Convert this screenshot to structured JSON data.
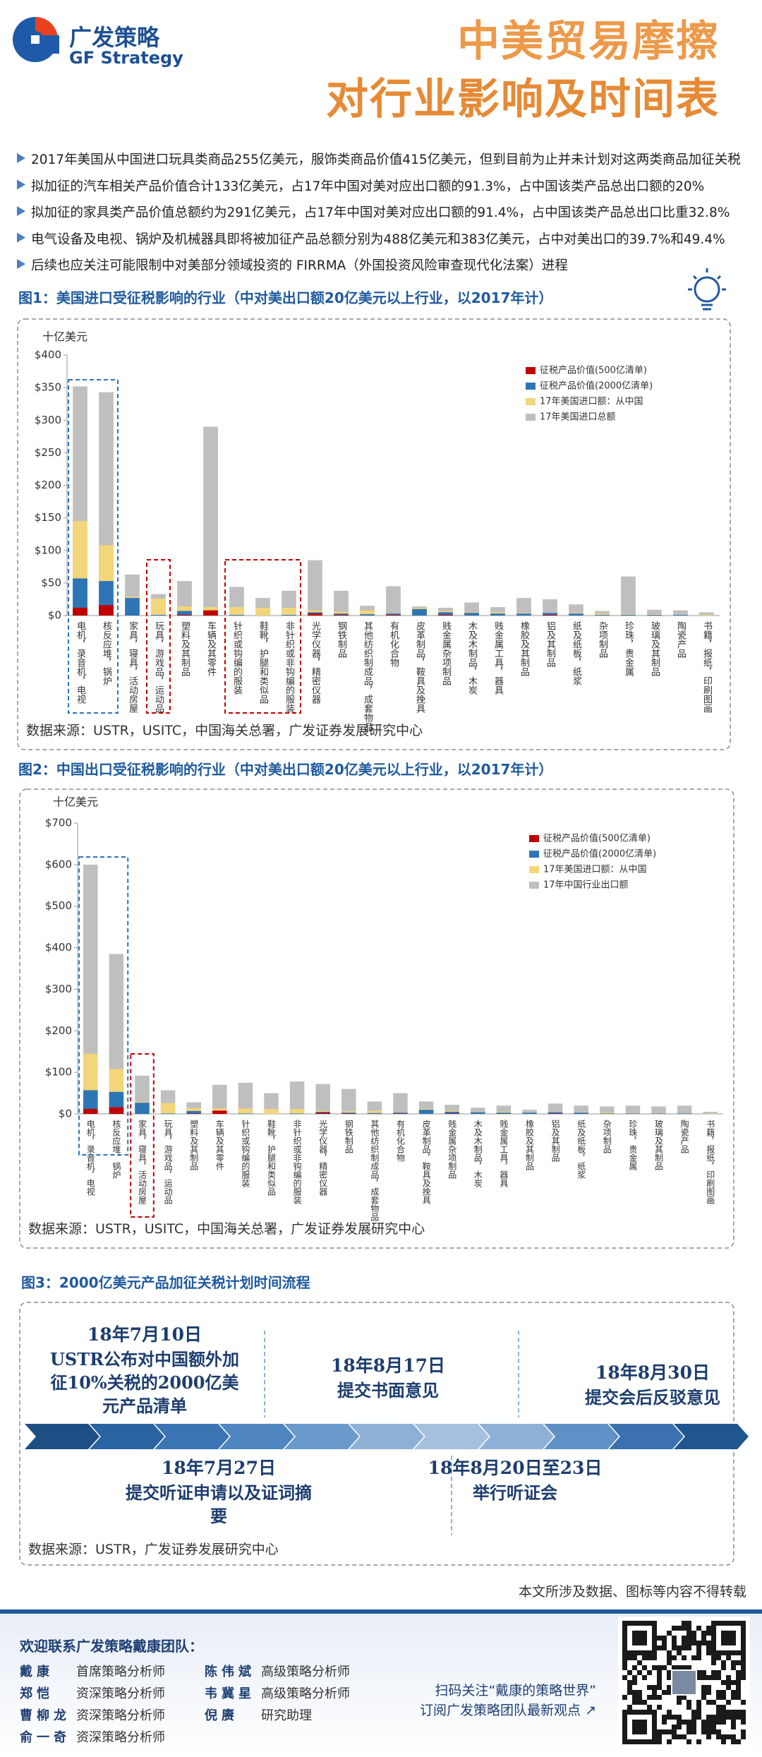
{
  "header": {
    "brand": "广发策略",
    "brand_en": "GF Strategy",
    "title_line1": "中美贸易摩擦",
    "title_line2": "对行业影响及时间表"
  },
  "bullets": [
    "2017年美国从中国进口玩具类商品255亿美元，服饰类商品价值415亿美元，但到目前为止并未计划对这两类商品加征关税",
    "拟加征的汽车相关产品价值合计133亿美元，占17年中国对美对应出口额的91.3%，占中国该类产品总出口额的20%",
    "拟加征的家具类产品价值总额约为291亿美元，占17年中国对美对应出口额的91.4%，占中国该类产品总出口比重32.8%",
    "电气设备及电视、锅炉及机械器具即将被加征产品总额分别为488亿美元和383亿美元，占中对美出口的39.7%和49.4%",
    "后续也应关注可能限制中对美部分领域投资的 FIRRMA（外国投资风险审查现代化法案）进程"
  ],
  "chart_data": [
    {
      "type": "bar",
      "title": "图1：美国进口受征税影响的行业（中对美出口额20亿美元以上行业，以2017年计）",
      "y_label": "十亿美元",
      "source": "数据来源：USTR，USITC，中国海关总署，广发证券发展研究中心",
      "bar_mode": "overlap",
      "legend": "upper right",
      "grid": false,
      "categories": [
        "电机，录音机，电视",
        "核反应堆，锅炉",
        "家具，寝具，活动房屋",
        "玩具，游戏品，运动品",
        "塑料及其制品",
        "车辆及其零件",
        "针织或钩编的服装",
        "鞋靴，护腿和类似品",
        "非针织或非钩编的服装",
        "光学仪器，精密仪器",
        "钢铁制品",
        "其他纺织制成品，成套物品",
        "有机化合物",
        "皮革制品，鞍具及挽具",
        "贱金属杂项制品",
        "木及木制品，木炭",
        "贱金属工具，器具",
        "橡胶及其制品",
        "铝及其制品",
        "纸及纸板，纸浆",
        "杂项制品",
        "珍珠，贵金属",
        "玻璃及其制品",
        "陶瓷产品",
        "书籍，报纸，印刷图画"
      ],
      "series": [
        {
          "name": "征税产品价值(500亿清单)",
          "color": "#c00000",
          "values": [
            12,
            16,
            0,
            0,
            1,
            8,
            0,
            0,
            0,
            3,
            1,
            0,
            1,
            0,
            1,
            0,
            0,
            0,
            1,
            0,
            0,
            0,
            0,
            0,
            0
          ]
        },
        {
          "name": "征税产品价值(2000亿清单)",
          "color": "#2e75b6",
          "values": [
            57,
            53,
            27,
            1,
            7,
            5,
            1,
            0,
            1,
            5,
            3,
            2,
            3,
            10,
            5,
            4,
            3,
            3,
            4,
            3,
            1,
            1,
            1,
            1,
            0
          ]
        },
        {
          "name": "17年美国进口额：从中国",
          "color": "#f3d57a",
          "values": [
            145,
            108,
            29,
            26,
            14,
            13,
            13,
            12,
            12,
            8,
            6,
            8,
            3,
            12,
            7,
            5,
            5,
            4,
            4,
            4,
            3,
            2,
            2,
            1,
            1
          ]
        },
        {
          "name": "17年美国进口总额",
          "color": "#bfbfbf",
          "values": [
            352,
            343,
            63,
            33,
            53,
            290,
            44,
            27,
            38,
            85,
            38,
            15,
            45,
            14,
            12,
            20,
            13,
            27,
            25,
            17,
            7,
            60,
            9,
            8,
            5
          ]
        }
      ],
      "ylim": [
        0,
        400
      ],
      "yticks": [
        {
          "value": 0,
          "label": "$0"
        },
        {
          "value": 50,
          "label": "$50"
        },
        {
          "value": 100,
          "label": "$100"
        },
        {
          "value": 150,
          "label": "$150"
        },
        {
          "value": 200,
          "label": "$200"
        },
        {
          "value": 250,
          "label": "$250"
        },
        {
          "value": 300,
          "label": "$300"
        },
        {
          "value": 350,
          "label": "$350"
        },
        {
          "value": 400,
          "label": "$400"
        }
      ]
    },
    {
      "type": "bar",
      "title": "图2：中国出口受征税影响的行业（中对美出口额20亿美元以上行业，以2017年计）",
      "y_label": "十亿美元",
      "source": "数据来源：USTR，USITC，中国海关总署，广发证券发展研究中心",
      "bar_mode": "overlap",
      "legend": "upper right",
      "grid": false,
      "categories": [
        "电机，录音机，电视",
        "核反应堆，锅炉",
        "家具，寝具，活动房屋",
        "玩具，游戏品，运动品",
        "塑料及其制品",
        "车辆及其零件",
        "针织或钩编的服装",
        "鞋靴，护腿和类似品",
        "非针织或非钩编的服装",
        "光学仪器，精密仪器",
        "钢铁制品",
        "其他纺织制成品，成套物品",
        "有机化合物",
        "皮革制品，鞍具及挽具",
        "贱金属杂项制品",
        "木及木制品，木炭",
        "贱金属工具，器具",
        "橡胶及其制品",
        "铝及其制品",
        "纸及纸板，纸浆",
        "杂项制品",
        "珍珠，贵金属",
        "玻璃及其制品",
        "陶瓷产品",
        "书籍，报纸，印刷图画"
      ],
      "series": [
        {
          "name": "征税产品价值(500亿清单)",
          "color": "#c00000",
          "values": [
            12,
            16,
            0,
            0,
            1,
            8,
            0,
            0,
            0,
            3,
            1,
            0,
            1,
            0,
            1,
            0,
            0,
            0,
            1,
            0,
            0,
            0,
            0,
            0,
            0
          ]
        },
        {
          "name": "征税产品价值(2000亿清单)",
          "color": "#2e75b6",
          "values": [
            57,
            53,
            27,
            1,
            7,
            5,
            1,
            0,
            1,
            5,
            3,
            2,
            3,
            10,
            5,
            4,
            3,
            3,
            4,
            3,
            1,
            1,
            1,
            1,
            0
          ]
        },
        {
          "name": "17年美国进口额：从中国",
          "color": "#f3d57a",
          "values": [
            145,
            108,
            29,
            26,
            14,
            13,
            13,
            12,
            12,
            8,
            6,
            8,
            3,
            12,
            7,
            5,
            5,
            4,
            4,
            4,
            3,
            2,
            2,
            1,
            1
          ]
        },
        {
          "name": "17年中国行业出口额",
          "color": "#bfbfbf",
          "values": [
            600,
            385,
            92,
            57,
            28,
            70,
            75,
            50,
            78,
            72,
            60,
            30,
            50,
            30,
            22,
            15,
            20,
            10,
            25,
            20,
            18,
            20,
            18,
            20,
            5
          ]
        }
      ],
      "ylim": [
        0,
        700
      ],
      "yticks": [
        {
          "value": 0,
          "label": "$0"
        },
        {
          "value": 100,
          "label": "$100"
        },
        {
          "value": 200,
          "label": "$200"
        },
        {
          "value": 300,
          "label": "$300"
        },
        {
          "value": 400,
          "label": "$400"
        },
        {
          "value": 500,
          "label": "$500"
        },
        {
          "value": 600,
          "label": "$600"
        },
        {
          "value": 700,
          "label": "$700"
        }
      ]
    }
  ],
  "timeline": {
    "title": "图3：2000亿美元产品加征关税计划时间流程",
    "events": [
      {
        "date": "18年7月10日",
        "text": "USTR公布对中国额外加征10%关税的2000亿美元产品清单"
      },
      {
        "date": "18年7月27日",
        "text": "提交听证申请以及证词摘要"
      },
      {
        "date": "18年8月17日",
        "text": "提交书面意见"
      },
      {
        "date": "18年8月20日至23日",
        "text": "举行听证会"
      },
      {
        "date": "18年8月30日",
        "text": "提交会后反驳意见"
      }
    ],
    "source": "数据来源：USTR，广发证券发展研究中心"
  },
  "notice": "本文所涉及数据、图标等内容不得转载",
  "team": {
    "title": "欢迎联系广发策略戴康团队：",
    "members": [
      {
        "name": "戴康",
        "role": "首席策略分析师"
      },
      {
        "name": "郑恺",
        "role": "资深策略分析师"
      },
      {
        "name": "曹柳龙",
        "role": "资深策略分析师"
      },
      {
        "name": "俞一奇",
        "role": "资深策略分析师"
      },
      {
        "name": "陈伟斌",
        "role": "高级策略分析师"
      },
      {
        "name": "韦冀星",
        "role": "高级策略分析师"
      },
      {
        "name": "倪赓",
        "role": "研究助理"
      }
    ],
    "qr_line1": "扫码关注“戴康的策略世界”",
    "qr_line2": "订阅广发策略团队最新观点 ↗"
  }
}
